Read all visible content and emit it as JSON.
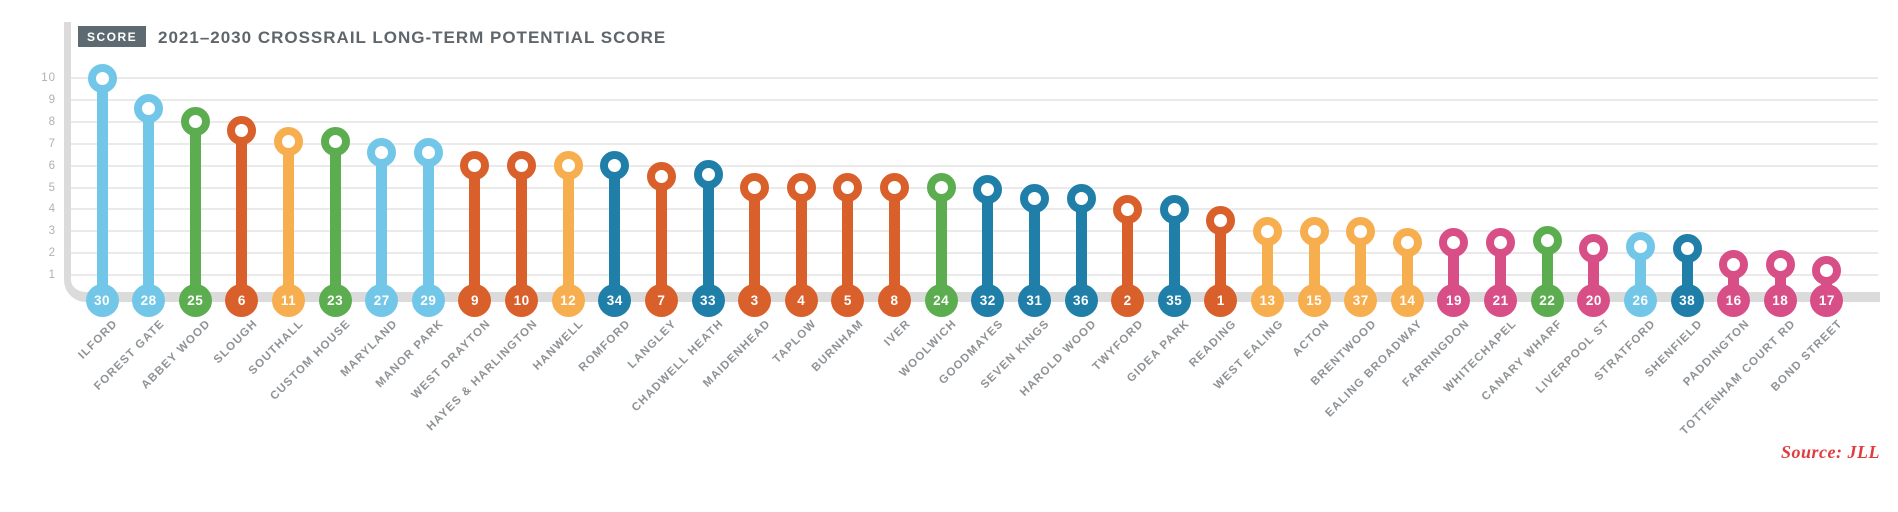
{
  "header": {
    "badge": "SCORE",
    "title": "2021–2030 CROSSRAIL LONG-TERM POTENTIAL SCORE"
  },
  "source": "Source: JLL",
  "colors": {
    "lightblue": "#72C7E8",
    "green": "#5BAD4F",
    "orange": "#D9602B",
    "yellow": "#F7AE4F",
    "teal": "#1F7FA9",
    "pink": "#D84F88",
    "axis": "#DBDBDB",
    "grid": "#EAEAEA",
    "badge_bg": "#5E6A71",
    "title_text": "#5F666B",
    "tick_text": "#AEB1B3",
    "label_text": "#8F9396",
    "source_text": "#E03C40"
  },
  "chart_data": {
    "type": "lollipop",
    "title": "2021–2030 CROSSRAIL LONG-TERM POTENTIAL SCORE",
    "ylabel": "SCORE",
    "ylim": [
      0,
      10
    ],
    "yticks": [
      1,
      2,
      3,
      4,
      5,
      6,
      7,
      8,
      9,
      10
    ],
    "grid": true,
    "note": "each station pin shows long-term potential score (circle height) and rank number (ball at base)",
    "stations": [
      {
        "name": "ILFORD",
        "rank": 30,
        "score": 10.0,
        "color": "lightblue"
      },
      {
        "name": "FOREST GATE",
        "rank": 28,
        "score": 8.6,
        "color": "lightblue"
      },
      {
        "name": "ABBEY WOOD",
        "rank": 25,
        "score": 8.0,
        "color": "green"
      },
      {
        "name": "SLOUGH",
        "rank": 6,
        "score": 7.6,
        "color": "orange"
      },
      {
        "name": "SOUTHALL",
        "rank": 11,
        "score": 7.1,
        "color": "yellow"
      },
      {
        "name": "CUSTOM HOUSE",
        "rank": 23,
        "score": 7.1,
        "color": "green"
      },
      {
        "name": "MARYLAND",
        "rank": 27,
        "score": 6.6,
        "color": "lightblue"
      },
      {
        "name": "MANOR PARK",
        "rank": 29,
        "score": 6.6,
        "color": "lightblue"
      },
      {
        "name": "WEST DRAYTON",
        "rank": 9,
        "score": 6.0,
        "color": "orange"
      },
      {
        "name": "HAYES & HARLINGTON",
        "rank": 10,
        "score": 6.0,
        "color": "orange"
      },
      {
        "name": "HANWELL",
        "rank": 12,
        "score": 6.0,
        "color": "yellow"
      },
      {
        "name": "ROMFORD",
        "rank": 34,
        "score": 6.0,
        "color": "teal"
      },
      {
        "name": "LANGLEY",
        "rank": 7,
        "score": 5.5,
        "color": "orange"
      },
      {
        "name": "CHADWELL HEATH",
        "rank": 33,
        "score": 5.6,
        "color": "teal"
      },
      {
        "name": "MAIDENHEAD",
        "rank": 3,
        "score": 5.0,
        "color": "orange"
      },
      {
        "name": "TAPLOW",
        "rank": 4,
        "score": 5.0,
        "color": "orange"
      },
      {
        "name": "BURNHAM",
        "rank": 5,
        "score": 5.0,
        "color": "orange"
      },
      {
        "name": "IVER",
        "rank": 8,
        "score": 5.0,
        "color": "orange"
      },
      {
        "name": "WOOLWICH",
        "rank": 24,
        "score": 5.0,
        "color": "green"
      },
      {
        "name": "GOODMAYES",
        "rank": 32,
        "score": 4.9,
        "color": "teal"
      },
      {
        "name": "SEVEN KINGS",
        "rank": 31,
        "score": 4.5,
        "color": "teal"
      },
      {
        "name": "HAROLD WOOD",
        "rank": 36,
        "score": 4.5,
        "color": "teal"
      },
      {
        "name": "TWYFORD",
        "rank": 2,
        "score": 4.0,
        "color": "orange"
      },
      {
        "name": "GIDEA PARK",
        "rank": 35,
        "score": 4.0,
        "color": "teal"
      },
      {
        "name": "READING",
        "rank": 1,
        "score": 3.5,
        "color": "orange"
      },
      {
        "name": "WEST EALING",
        "rank": 13,
        "score": 3.0,
        "color": "yellow"
      },
      {
        "name": "ACTON",
        "rank": 15,
        "score": 3.0,
        "color": "yellow"
      },
      {
        "name": "BRENTWOOD",
        "rank": 37,
        "score": 3.0,
        "color": "yellow"
      },
      {
        "name": "EALING BROADWAY",
        "rank": 14,
        "score": 2.5,
        "color": "yellow"
      },
      {
        "name": "FARRINGDON",
        "rank": 19,
        "score": 2.5,
        "color": "pink"
      },
      {
        "name": "WHITECHAPEL",
        "rank": 21,
        "score": 2.5,
        "color": "pink"
      },
      {
        "name": "CANARY WHARF",
        "rank": 22,
        "score": 2.6,
        "color": "green"
      },
      {
        "name": "LIVERPOOL ST",
        "rank": 20,
        "score": 2.2,
        "color": "pink"
      },
      {
        "name": "STRATFORD",
        "rank": 26,
        "score": 2.3,
        "color": "lightblue"
      },
      {
        "name": "SHENFIELD",
        "rank": 38,
        "score": 2.2,
        "color": "teal"
      },
      {
        "name": "PADDINGTON",
        "rank": 16,
        "score": 1.5,
        "color": "pink"
      },
      {
        "name": "TOTTENHAM COURT RD",
        "rank": 18,
        "score": 1.5,
        "color": "pink"
      },
      {
        "name": "BOND STREET",
        "rank": 17,
        "score": 1.2,
        "color": "pink"
      }
    ]
  }
}
